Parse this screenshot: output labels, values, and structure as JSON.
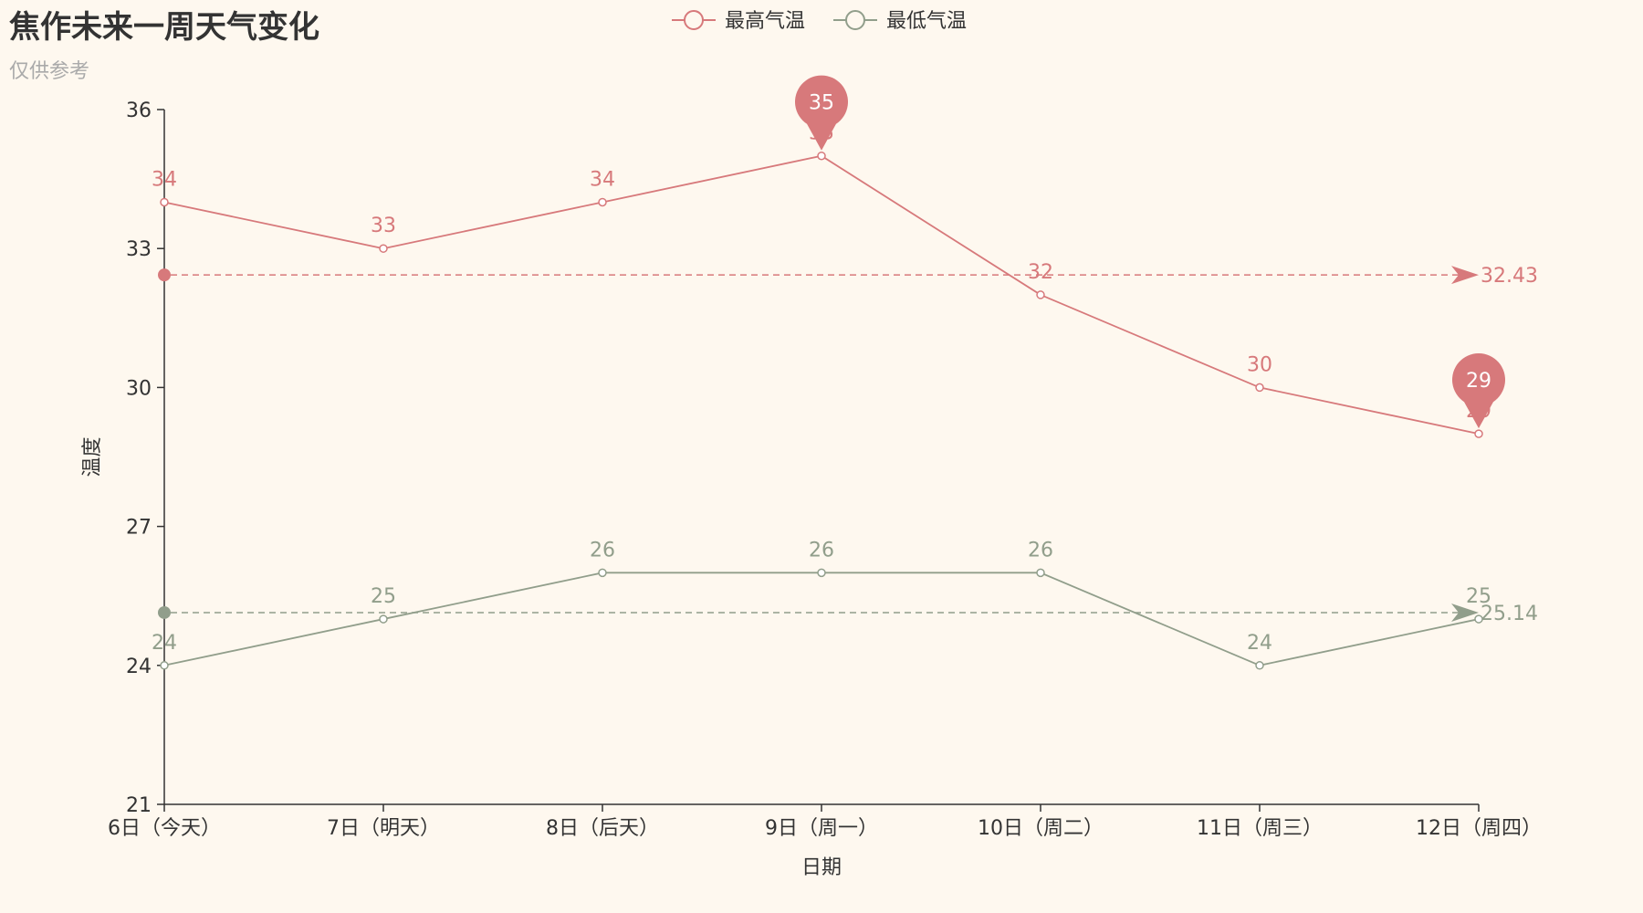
{
  "colors": {
    "background": "#fef8ef",
    "high": "#d7797b",
    "low": "#919e8b",
    "axis": "#333333",
    "subtitle": "#aaaaaa"
  },
  "chart_data": {
    "type": "line",
    "title": "焦作未来一周天气变化",
    "subtitle": "仅供参考",
    "xlabel": "日期",
    "ylabel": "温度",
    "ylim": [
      21,
      36
    ],
    "yticks": [
      21,
      24,
      27,
      30,
      33,
      36
    ],
    "grid": false,
    "legend_position": "top-center",
    "categories": [
      "6日（今天）",
      "7日（明天）",
      "8日（后天）",
      "9日（周一）",
      "10日（周二）",
      "11日（周三）",
      "12日（周四）"
    ],
    "series": [
      {
        "name": "最高气温",
        "color": "#d7797b",
        "values": [
          34,
          33,
          34,
          35,
          32,
          30,
          29
        ],
        "mark_points": [
          {
            "type": "max",
            "category_index": 3,
            "value": 35
          },
          {
            "type": "min",
            "category_index": 6,
            "value": 29
          }
        ],
        "mark_line": {
          "type": "average",
          "value": 32.43,
          "label": "32.43"
        }
      },
      {
        "name": "最低气温",
        "color": "#919e8b",
        "values": [
          24,
          25,
          26,
          26,
          26,
          24,
          25
        ],
        "mark_line": {
          "type": "average",
          "value": 25.14,
          "label": "25.14"
        }
      }
    ]
  }
}
